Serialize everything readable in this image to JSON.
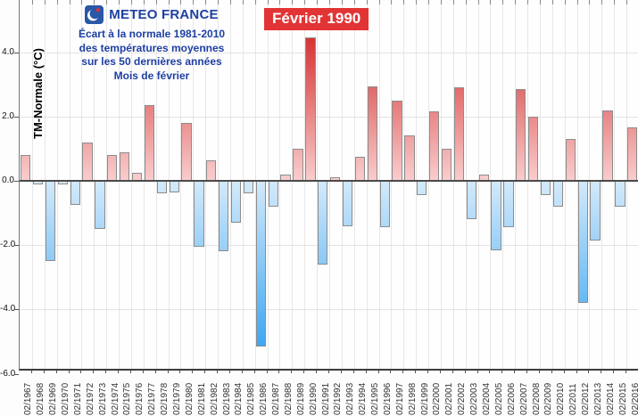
{
  "header": {
    "brand": "METEO FRANCE",
    "logo": "meteo-france-logo",
    "subtitle_lines": [
      "Écart à la normale 1981-2010",
      "des températures moyennes",
      "sur les 50 dernières années",
      "Mois de février"
    ]
  },
  "annotation": {
    "label": "Février 1990"
  },
  "axis": {
    "ylabel": "TM-Normale (°C)"
  },
  "chart_data": {
    "type": "bar",
    "title": "Écart à la normale 1981-2010 des températures moyennes sur les 50 dernières années — Mois de février",
    "xlabel": "",
    "ylabel": "TM-Normale (°C)",
    "ylim": [
      -6,
      4.8
    ],
    "yticks": [
      4,
      2,
      0,
      -2,
      -4,
      -6
    ],
    "grid": true,
    "legend": "none",
    "annotation": {
      "text": "Février 1990",
      "target_category": "02/1990"
    },
    "categories": [
      "02/1967",
      "02/1968",
      "02/1969",
      "02/1970",
      "02/1971",
      "02/1972",
      "02/1973",
      "02/1974",
      "02/1975",
      "02/1976",
      "02/1977",
      "02/1978",
      "02/1979",
      "02/1980",
      "02/1981",
      "02/1982",
      "02/1983",
      "02/1984",
      "02/1985",
      "02/1986",
      "02/1987",
      "02/1988",
      "02/1989",
      "02/1990",
      "02/1991",
      "02/1992",
      "02/1993",
      "02/1994",
      "02/1995",
      "02/1996",
      "02/1997",
      "02/1998",
      "02/1999",
      "02/2000",
      "02/2001",
      "02/2002",
      "02/2003",
      "02/2004",
      "02/2005",
      "02/2006",
      "02/2007",
      "02/2008",
      "02/2009",
      "02/2010",
      "02/2011",
      "02/2012",
      "02/2013",
      "02/2014",
      "02/2015",
      "02/2016"
    ],
    "values": [
      0.8,
      -0.1,
      -2.5,
      -0.1,
      -0.75,
      1.2,
      -1.5,
      0.8,
      0.9,
      0.25,
      2.35,
      -0.4,
      -0.35,
      1.8,
      -2.05,
      0.65,
      -2.2,
      -1.3,
      -0.4,
      -5.15,
      -0.8,
      0.2,
      1.0,
      4.45,
      -2.6,
      0.1,
      -1.4,
      0.75,
      2.95,
      -1.45,
      2.5,
      1.4,
      -0.45,
      2.15,
      1.0,
      2.9,
      -1.2,
      0.2,
      -2.15,
      -1.45,
      2.85,
      2.0,
      -0.45,
      -0.8,
      1.3,
      -3.8,
      -1.85,
      2.2,
      -0.8,
      1.65
    ],
    "colors": {
      "positive_strong": "#d63434",
      "positive_pale": "#fad2d2",
      "negative_strong": "#3ea7f2",
      "negative_pale": "#d8ecfa",
      "bar_border": "#8c8c8c",
      "zero_line": "#4a4a4a",
      "annotation_bg": "#e23434",
      "title_blue": "#1d3fa3"
    }
  }
}
